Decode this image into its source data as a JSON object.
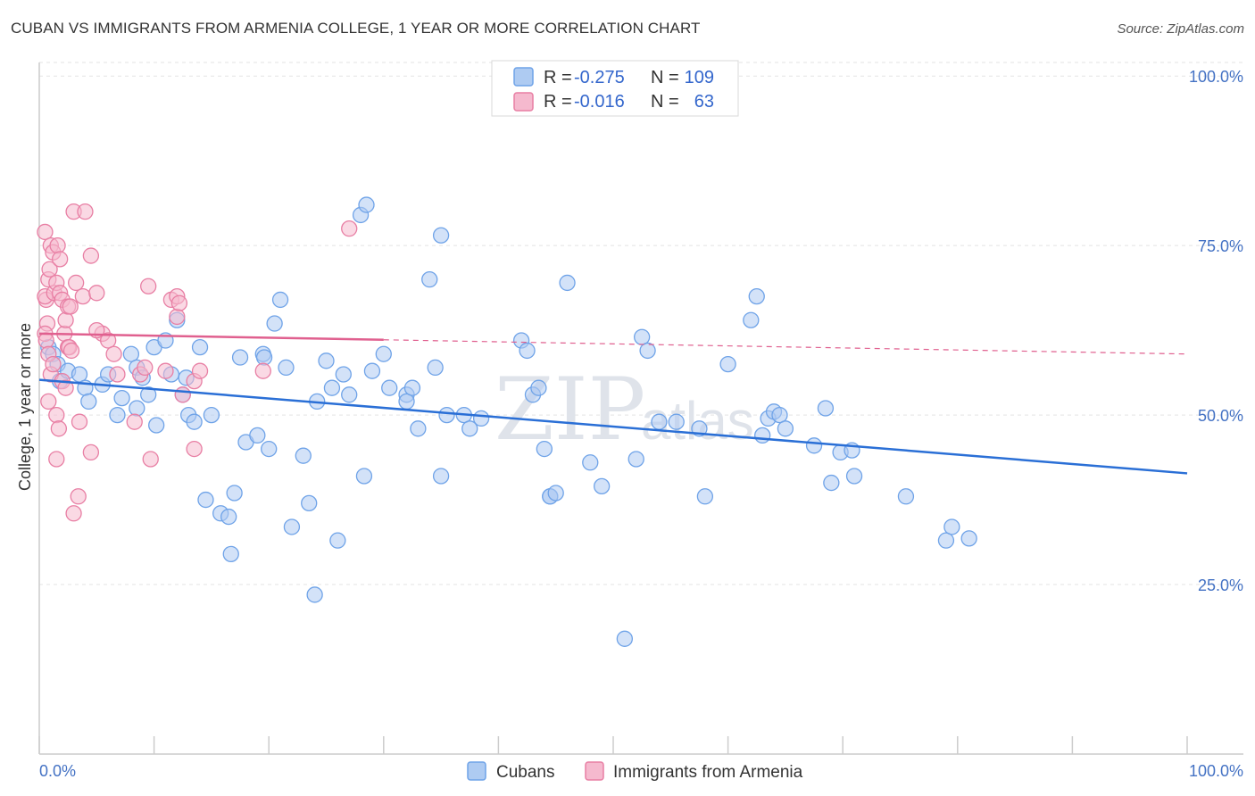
{
  "chart_data": {
    "type": "scatter",
    "title": "CUBAN VS IMMIGRANTS FROM ARMENIA COLLEGE, 1 YEAR OR MORE CORRELATION CHART",
    "source": "Source: ZipAtlas.com",
    "xlabel": "",
    "ylabel": "College, 1 year or more",
    "xlim": [
      0,
      100
    ],
    "ylim": [
      0,
      102
    ],
    "x_tick_labels": [
      "0.0%",
      "100.0%"
    ],
    "y_ticks": [
      25,
      50,
      75,
      100
    ],
    "y_tick_labels": [
      "25.0%",
      "50.0%",
      "75.0%",
      "100.0%"
    ],
    "watermark": [
      "ZIP",
      "atlas"
    ],
    "legend": [
      {
        "r_label": "R =",
        "r": "-0.275",
        "n_label": "N =",
        "n": "109"
      },
      {
        "r_label": "R =",
        "r": "-0.016",
        "n_label": "N =",
        "n": "63"
      }
    ],
    "series": [
      {
        "name": "Cubans",
        "color": "#6fa3e8",
        "fill": "#aecbf2",
        "line_color": "#2a6fd6",
        "trend": {
          "x0": 0,
          "y0": 55.2,
          "x1": 100,
          "y1": 41.4,
          "solid_to": 100
        },
        "points": [
          [
            0.8,
            60
          ],
          [
            1.2,
            59
          ],
          [
            1.8,
            55
          ],
          [
            1.6,
            57.5
          ],
          [
            2.5,
            56.5
          ],
          [
            3.5,
            56
          ],
          [
            4,
            54
          ],
          [
            4.3,
            52
          ],
          [
            5.5,
            54.5
          ],
          [
            6,
            56
          ],
          [
            6.8,
            50
          ],
          [
            7.2,
            52.5
          ],
          [
            8,
            59
          ],
          [
            8.5,
            57
          ],
          [
            8.5,
            51
          ],
          [
            9,
            55.5
          ],
          [
            9.5,
            53
          ],
          [
            10,
            60
          ],
          [
            10.2,
            48.5
          ],
          [
            11,
            61
          ],
          [
            11.5,
            56
          ],
          [
            12,
            64
          ],
          [
            12.5,
            53
          ],
          [
            12.8,
            55.5
          ],
          [
            13,
            50
          ],
          [
            13.5,
            49
          ],
          [
            14,
            60
          ],
          [
            14.5,
            37.5
          ],
          [
            15,
            50
          ],
          [
            15.8,
            35.5
          ],
          [
            16.5,
            35
          ],
          [
            16.7,
            29.5
          ],
          [
            17,
            38.5
          ],
          [
            17.5,
            58.5
          ],
          [
            18,
            46
          ],
          [
            19,
            47
          ],
          [
            19.5,
            59
          ],
          [
            19.6,
            58.5
          ],
          [
            20,
            45
          ],
          [
            20.5,
            63.5
          ],
          [
            21,
            67
          ],
          [
            21.5,
            57
          ],
          [
            22,
            33.5
          ],
          [
            23,
            44
          ],
          [
            23.5,
            37
          ],
          [
            24,
            23.5
          ],
          [
            24.2,
            52
          ],
          [
            25,
            58
          ],
          [
            25.5,
            54
          ],
          [
            26,
            31.5
          ],
          [
            26.5,
            56
          ],
          [
            27,
            53
          ],
          [
            28,
            79.5
          ],
          [
            28.5,
            81
          ],
          [
            28.3,
            41
          ],
          [
            29,
            56.5
          ],
          [
            30,
            59
          ],
          [
            30.5,
            54
          ],
          [
            32,
            53
          ],
          [
            32,
            52
          ],
          [
            32.5,
            54
          ],
          [
            33,
            48
          ],
          [
            34,
            70
          ],
          [
            34.5,
            57
          ],
          [
            35,
            76.5
          ],
          [
            35,
            41
          ],
          [
            35.5,
            50
          ],
          [
            37,
            50
          ],
          [
            37.5,
            48
          ],
          [
            38.5,
            49.5
          ],
          [
            42,
            61
          ],
          [
            42.5,
            59.5
          ],
          [
            43,
            53
          ],
          [
            43.5,
            54
          ],
          [
            44,
            45
          ],
          [
            44.5,
            38
          ],
          [
            44.5,
            38
          ],
          [
            45,
            38.5
          ],
          [
            46,
            69.5
          ],
          [
            48,
            43
          ],
          [
            49,
            39.5
          ],
          [
            51,
            17
          ],
          [
            52,
            43.5
          ],
          [
            52.5,
            61.5
          ],
          [
            53,
            59.5
          ],
          [
            54,
            49
          ],
          [
            55.5,
            49
          ],
          [
            57.5,
            48
          ],
          [
            58,
            38
          ],
          [
            60,
            57.5
          ],
          [
            62,
            64
          ],
          [
            62.5,
            67.5
          ],
          [
            63,
            47
          ],
          [
            63.5,
            49.5
          ],
          [
            64,
            50.5
          ],
          [
            64.5,
            50
          ],
          [
            65,
            48
          ],
          [
            67.5,
            45.5
          ],
          [
            68.5,
            51
          ],
          [
            69,
            40
          ],
          [
            69.8,
            44.5
          ],
          [
            70.8,
            44.8
          ],
          [
            71,
            41
          ],
          [
            75.5,
            38
          ],
          [
            79,
            31.5
          ],
          [
            79.5,
            33.5
          ],
          [
            81,
            31.8
          ]
        ]
      },
      {
        "name": "Immigrants from Armenia",
        "color": "#e87fa4",
        "fill": "#f5b9ce",
        "line_color": "#e0608f",
        "trend": {
          "x0": 0,
          "y0": 62,
          "x1": 100,
          "y1": 59,
          "solid_to": 30
        },
        "points": [
          [
            0.5,
            77
          ],
          [
            0.7,
            63.5
          ],
          [
            0.8,
            70
          ],
          [
            0.9,
            71.5
          ],
          [
            0.5,
            62
          ],
          [
            0.6,
            61
          ],
          [
            0.6,
            67
          ],
          [
            0.5,
            67.5
          ],
          [
            0.8,
            59
          ],
          [
            1,
            75
          ],
          [
            1.2,
            74
          ],
          [
            1.3,
            68
          ],
          [
            1.5,
            69.5
          ],
          [
            1.6,
            75
          ],
          [
            1.8,
            73
          ],
          [
            1.8,
            68
          ],
          [
            2,
            67
          ],
          [
            2.2,
            62
          ],
          [
            2.3,
            64
          ],
          [
            2.5,
            60
          ],
          [
            2.5,
            66
          ],
          [
            2.7,
            66
          ],
          [
            3,
            80
          ],
          [
            3.2,
            69.5
          ],
          [
            3.8,
            67.5
          ],
          [
            4,
            80
          ],
          [
            4.5,
            73.5
          ],
          [
            5,
            68
          ],
          [
            5.5,
            62
          ],
          [
            6,
            61
          ],
          [
            6.5,
            59
          ],
          [
            6.8,
            56
          ],
          [
            8.3,
            49
          ],
          [
            8.8,
            56
          ],
          [
            9.2,
            57
          ],
          [
            9.5,
            69
          ],
          [
            9.7,
            43.5
          ],
          [
            11,
            56.5
          ],
          [
            11.5,
            67
          ],
          [
            12,
            67.5
          ],
          [
            12,
            64.5
          ],
          [
            12.2,
            66.5
          ],
          [
            12.5,
            53
          ],
          [
            13.5,
            45
          ],
          [
            13.5,
            55
          ],
          [
            14,
            56.5
          ],
          [
            19.5,
            56.5
          ],
          [
            27,
            77.5
          ],
          [
            0.8,
            52
          ],
          [
            1,
            56
          ],
          [
            1.2,
            57.5
          ],
          [
            1.5,
            50
          ],
          [
            1.7,
            48
          ],
          [
            2,
            55
          ],
          [
            2.3,
            54
          ],
          [
            2.6,
            60
          ],
          [
            2.8,
            59.5
          ],
          [
            3,
            35.5
          ],
          [
            3.4,
            38
          ],
          [
            3.5,
            49
          ],
          [
            4.5,
            44.5
          ],
          [
            5,
            62.5
          ],
          [
            1.5,
            43.5
          ]
        ]
      }
    ]
  }
}
